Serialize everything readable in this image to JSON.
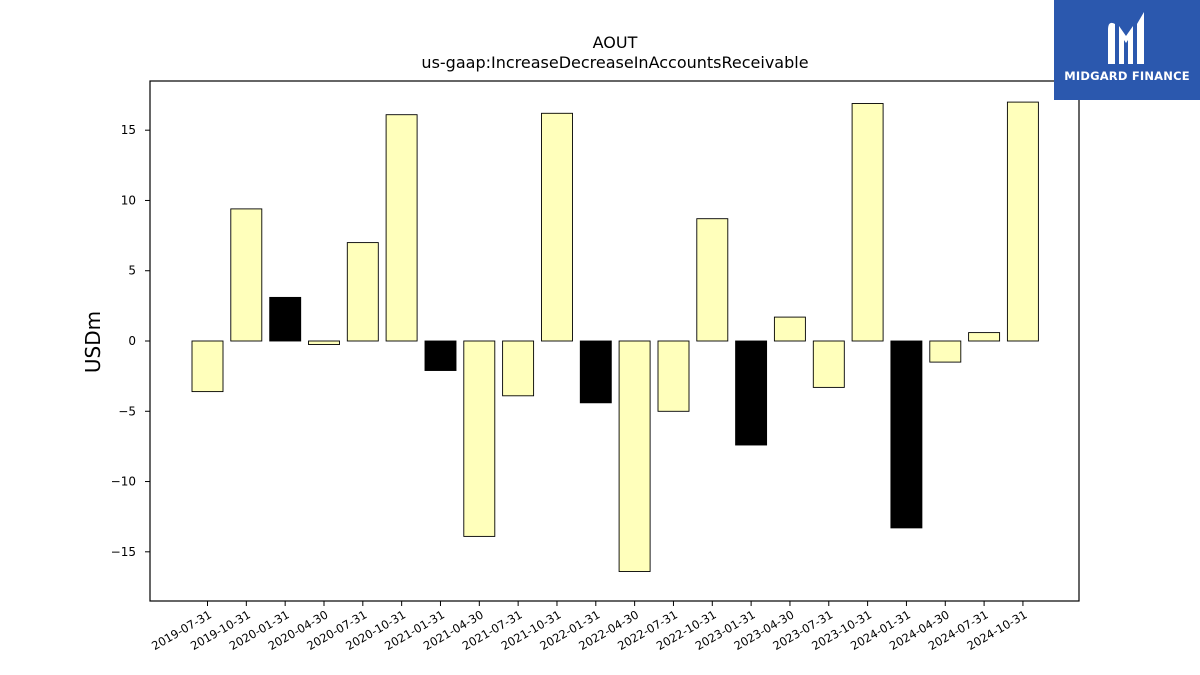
{
  "brand": {
    "name": "MIDGARD FINANCE",
    "bg_color": "#2b58ae"
  },
  "chart_data": {
    "type": "bar",
    "title": "AOUT",
    "subtitle": "us-gaap:IncreaseDecreaseInAccountsReceivable",
    "xlabel": "",
    "ylabel": "USDm",
    "ylim": [
      -18.5,
      18.5
    ],
    "yticks": [
      -15,
      -10,
      -5,
      0,
      5,
      10,
      15
    ],
    "grid": false,
    "categories": [
      "2019-07-31",
      "2019-10-31",
      "2020-01-31",
      "2020-04-30",
      "2020-07-31",
      "2020-10-31",
      "2021-01-31",
      "2021-04-30",
      "2021-07-31",
      "2021-10-31",
      "2022-01-31",
      "2022-04-30",
      "2022-07-31",
      "2022-10-31",
      "2023-01-31",
      "2023-04-30",
      "2023-07-31",
      "2023-10-31",
      "2024-01-31",
      "2024-04-30",
      "2024-07-31",
      "2024-10-31"
    ],
    "values": [
      -3.6,
      9.4,
      3.1,
      -0.25,
      7.0,
      16.1,
      -2.1,
      -13.9,
      -3.9,
      16.2,
      -4.4,
      -16.4,
      -5.0,
      8.7,
      -7.4,
      1.7,
      -3.3,
      16.9,
      -13.3,
      -1.5,
      0.6,
      17.0
    ],
    "highlight": [
      false,
      false,
      true,
      false,
      false,
      false,
      true,
      false,
      false,
      false,
      true,
      false,
      false,
      false,
      true,
      false,
      false,
      false,
      true,
      false,
      false,
      false
    ],
    "colors": {
      "bar": "#ffffbb",
      "highlight": "#000000",
      "edge": "#000000"
    }
  }
}
